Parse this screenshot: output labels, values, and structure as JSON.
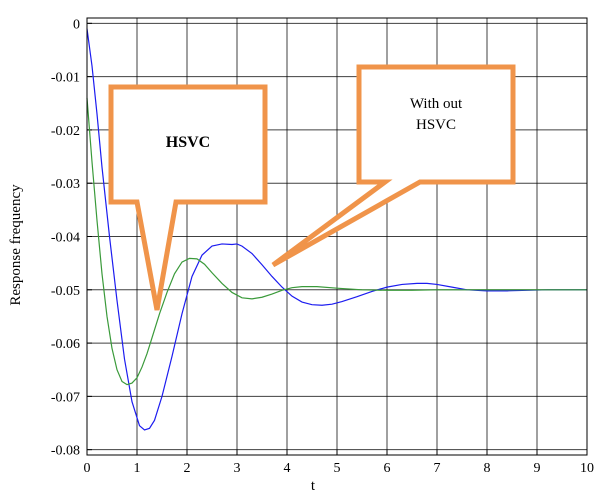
{
  "chart_data": {
    "type": "line",
    "xlabel": "t",
    "ylabel": "Response frequency",
    "xlim": [
      0,
      10
    ],
    "ylim": [
      -0.081,
      0.001
    ],
    "grid": true,
    "x_ticks": [
      0,
      1,
      2,
      3,
      4,
      5,
      6,
      7,
      8,
      9,
      10
    ],
    "x_tick_labels": [
      "0",
      "1",
      "2",
      "3",
      "4",
      "5",
      "6",
      "7",
      "8",
      "9",
      "10"
    ],
    "y_ticks": [
      0,
      -0.01,
      -0.02,
      -0.03,
      -0.04,
      -0.05,
      -0.06,
      -0.07,
      -0.08
    ],
    "y_tick_labels": [
      "0",
      "-0.01",
      "-0.02",
      "-0.03",
      "-0.04",
      "-0.05",
      "-0.06",
      "-0.07",
      "-0.08"
    ],
    "series": [
      {
        "color": "#1c1cf0",
        "x": [
          0,
          0.1,
          0.2,
          0.3,
          0.45,
          0.6,
          0.75,
          0.9,
          1.05,
          1.15,
          1.25,
          1.35,
          1.5,
          1.7,
          1.9,
          2.1,
          2.3,
          2.5,
          2.7,
          2.9,
          3.0,
          3.1,
          3.3,
          3.5,
          3.7,
          3.9,
          4.1,
          4.3,
          4.5,
          4.7,
          4.9,
          5.1,
          5.4,
          5.7,
          6.0,
          6.3,
          6.6,
          6.8,
          7.0,
          7.3,
          7.6,
          8.0,
          8.4,
          8.8,
          9.2,
          9.6,
          10
        ],
        "y": [
          -0.001,
          -0.008,
          -0.017,
          -0.027,
          -0.04,
          -0.052,
          -0.063,
          -0.071,
          -0.0755,
          -0.0763,
          -0.076,
          -0.0745,
          -0.07,
          -0.0625,
          -0.0545,
          -0.0475,
          -0.0435,
          -0.0418,
          -0.0414,
          -0.0415,
          -0.0414,
          -0.0418,
          -0.0432,
          -0.0453,
          -0.0475,
          -0.0495,
          -0.0512,
          -0.0523,
          -0.0528,
          -0.0529,
          -0.0527,
          -0.0522,
          -0.0513,
          -0.0503,
          -0.0495,
          -0.049,
          -0.0488,
          -0.0488,
          -0.049,
          -0.0495,
          -0.05,
          -0.0502,
          -0.0502,
          -0.0501,
          -0.05,
          -0.05,
          -0.05
        ]
      },
      {
        "color": "#3a9a3a",
        "x": [
          0,
          0.05,
          0.1,
          0.2,
          0.3,
          0.4,
          0.5,
          0.6,
          0.7,
          0.8,
          0.9,
          1.0,
          1.1,
          1.2,
          1.3,
          1.45,
          1.6,
          1.75,
          1.9,
          2.05,
          2.2,
          2.35,
          2.5,
          2.7,
          2.9,
          3.1,
          3.3,
          3.5,
          3.7,
          3.9,
          4.1,
          4.3,
          4.6,
          5.0,
          5.5,
          6.0,
          6.5,
          7.0,
          7.5,
          8.0,
          8.5,
          9.0,
          10
        ],
        "y": [
          -0.014,
          -0.02,
          -0.026,
          -0.037,
          -0.047,
          -0.055,
          -0.061,
          -0.065,
          -0.0672,
          -0.0678,
          -0.0675,
          -0.0665,
          -0.0645,
          -0.062,
          -0.059,
          -0.0545,
          -0.0505,
          -0.047,
          -0.0448,
          -0.0441,
          -0.0442,
          -0.0452,
          -0.0468,
          -0.0488,
          -0.0505,
          -0.0515,
          -0.0517,
          -0.0514,
          -0.0508,
          -0.0501,
          -0.0496,
          -0.0494,
          -0.0494,
          -0.0497,
          -0.05,
          -0.0501,
          -0.0501,
          -0.05,
          -0.05,
          -0.05,
          -0.05,
          -0.05,
          -0.05
        ]
      }
    ],
    "annotations": [
      {
        "text": "HSVC"
      },
      {
        "text": "With out\nHSVC"
      }
    ]
  }
}
